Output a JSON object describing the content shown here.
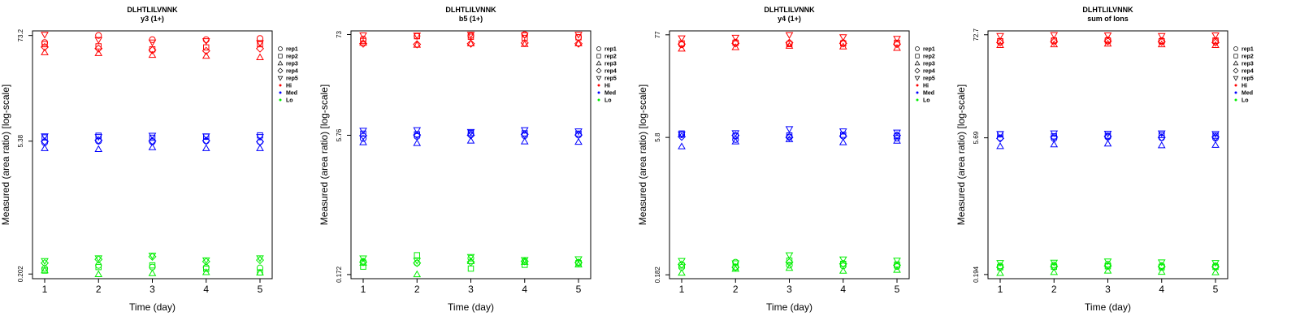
{
  "colors": {
    "Hi": "#ff0000",
    "Med": "#0000ff",
    "Lo": "#00ee00"
  },
  "chart_data": [
    {
      "type": "scatter",
      "title": "DLHTLILVNNK",
      "subtitle": "y3 (1+)",
      "xlabel": "Time (day)",
      "ylabel": "Measured (area ratio) [log-scale]",
      "yscale": "log",
      "x": [
        1,
        2,
        3,
        4,
        5
      ],
      "xticks": [
        "1",
        "2",
        "3",
        "4",
        "5"
      ],
      "yticks": [
        0.202,
        5.38,
        73.2
      ],
      "yticklabels": [
        "0.202",
        "5.38",
        "73.2"
      ],
      "ylim": [
        0.18,
        82
      ],
      "legend": [
        "rep1",
        "rep2",
        "rep3",
        "rep4",
        "rep5",
        "Hi",
        "Med",
        "Lo"
      ],
      "series": [
        {
          "name": "Hi",
          "values": [
            [
              61.5,
              73.2,
              66.0,
              66.0,
              68.0
            ],
            [
              59.0,
              56.0,
              52.0,
              54.5,
              59.0
            ],
            [
              48.0,
              47.0,
              45.0,
              44.0,
              42.5
            ],
            [
              55.0,
              53.0,
              51.0,
              50.0,
              53.0
            ],
            [
              75.0,
              66.0,
              62.0,
              64.0,
              61.0
            ]
          ]
        },
        {
          "name": "Med",
          "values": [
            [
              5.2,
              5.38,
              5.3,
              5.4,
              5.3
            ],
            [
              5.9,
              6.15,
              5.85,
              6.0,
              6.2
            ],
            [
              4.5,
              4.4,
              4.6,
              4.5,
              4.5
            ],
            [
              5.35,
              5.5,
              5.4,
              5.45,
              5.3
            ],
            [
              6.1,
              6.0,
              6.2,
              6.1,
              6.0
            ]
          ]
        },
        {
          "name": "Lo",
          "values": [
            [
              0.232,
              0.25,
              0.24,
              0.238,
              0.235
            ],
            [
              0.22,
              0.24,
              0.25,
              0.23,
              0.21
            ],
            [
              0.22,
              0.2,
              0.205,
              0.21,
              0.208
            ],
            [
              0.265,
              0.29,
              0.31,
              0.275,
              0.285
            ],
            [
              0.28,
              0.3,
              0.32,
              0.285,
              0.3
            ]
          ]
        }
      ]
    },
    {
      "type": "scatter",
      "title": "DLHTLILVNNK",
      "subtitle": "b5 (1+)",
      "xlabel": "Time (day)",
      "ylabel": "Measured (area ratio) [log-scale]",
      "yscale": "log",
      "x": [
        1,
        2,
        3,
        4,
        5
      ],
      "xticks": [
        "1",
        "2",
        "3",
        "4",
        "5"
      ],
      "yticks": [
        0.172,
        5.76,
        73
      ],
      "yticklabels": [
        "0.172",
        "5.76",
        "73"
      ],
      "ylim": [
        0.155,
        80
      ],
      "legend": [
        "rep1",
        "rep2",
        "rep3",
        "rep4",
        "rep5",
        "Hi",
        "Med",
        "Lo"
      ],
      "series": [
        {
          "name": "Hi",
          "values": [
            [
              65.0,
              70.0,
              71.0,
              73.0,
              68.0
            ],
            [
              62.0,
              70.0,
              69.0,
              67.0,
              68.0
            ],
            [
              59.0,
              56.0,
              58.0,
              57.0,
              58.0
            ],
            [
              58.0,
              57.0,
              58.0,
              59.0,
              58.0
            ],
            [
              72.0,
              71.5,
              73.0,
              72.0,
              73.0
            ]
          ]
        },
        {
          "name": "Med",
          "values": [
            [
              5.3,
              5.6,
              5.9,
              5.7,
              5.8
            ],
            [
              6.0,
              5.9,
              6.1,
              6.05,
              6.0
            ],
            [
              4.8,
              4.7,
              5.0,
              4.9,
              4.85
            ],
            [
              5.7,
              5.8,
              5.76,
              5.9,
              5.8
            ],
            [
              6.5,
              6.6,
              6.3,
              6.6,
              6.4
            ]
          ]
        },
        {
          "name": "Lo",
          "values": [
            [
              0.24,
              0.23,
              0.26,
              0.24,
              0.235
            ],
            [
              0.21,
              0.28,
              0.2,
              0.22,
              0.23
            ],
            [
              0.23,
              0.172,
              0.24,
              0.235,
              0.22
            ],
            [
              0.235,
              0.23,
              0.236,
              0.24,
              0.232
            ],
            [
              0.26,
              0.245,
              0.27,
              0.25,
              0.255
            ]
          ]
        }
      ]
    },
    {
      "type": "scatter",
      "title": "DLHTLILVNNK",
      "subtitle": "y4 (1+)",
      "xlabel": "Time (day)",
      "ylabel": "Measured (area ratio) [log-scale]",
      "yscale": "log",
      "x": [
        1,
        2,
        3,
        4,
        5
      ],
      "xticks": [
        "1",
        "2",
        "3",
        "4",
        "5"
      ],
      "yticks": [
        0.182,
        5.8,
        77
      ],
      "yticklabels": [
        "0.182",
        "5.8",
        "77"
      ],
      "ylim": [
        0.165,
        85
      ],
      "legend": [
        "rep1",
        "rep2",
        "rep3",
        "rep4",
        "rep5",
        "Hi",
        "Med",
        "Lo"
      ],
      "series": [
        {
          "name": "Hi",
          "values": [
            [
              60.0,
              64.0,
              62.0,
              63.0,
              61.0
            ],
            [
              62.0,
              63.0,
              61.0,
              62.0,
              63.0
            ],
            [
              54.0,
              56.0,
              58.0,
              57.0,
              55.0
            ],
            [
              61.0,
              62.0,
              63.0,
              62.0,
              61.0
            ],
            [
              71.0,
              72.0,
              77.0,
              73.0,
              70.0
            ]
          ]
        },
        {
          "name": "Med",
          "values": [
            [
              6.2,
              5.5,
              5.9,
              6.0,
              5.7
            ],
            [
              6.4,
              6.0,
              6.1,
              6.2,
              6.0
            ],
            [
              4.6,
              5.2,
              5.5,
              5.1,
              5.3
            ],
            [
              5.9,
              6.1,
              5.8,
              6.0,
              6.1
            ],
            [
              6.3,
              6.5,
              7.2,
              6.8,
              6.6
            ]
          ]
        },
        {
          "name": "Lo",
          "values": [
            [
              0.22,
              0.25,
              0.232,
              0.228,
              0.224
            ],
            [
              0.23,
              0.22,
              0.26,
              0.24,
              0.235
            ],
            [
              0.19,
              0.21,
              0.215,
              0.2,
              0.205
            ],
            [
              0.236,
              0.22,
              0.25,
              0.24,
              0.232
            ],
            [
              0.26,
              0.245,
              0.3,
              0.27,
              0.262
            ]
          ]
        }
      ]
    },
    {
      "type": "scatter",
      "title": "DLHTLILVNNK",
      "subtitle": "sum of Ions",
      "xlabel": "Time (day)",
      "ylabel": "Measured (area ratio) [log-scale]",
      "yscale": "log",
      "x": [
        1,
        2,
        3,
        4,
        5
      ],
      "xticks": [
        "1",
        "2",
        "3",
        "4",
        "5"
      ],
      "yticks": [
        0.194,
        5.69,
        72.7
      ],
      "yticklabels": [
        "0.194",
        "5.69",
        "72.7"
      ],
      "ylim": [
        0.175,
        80
      ],
      "legend": [
        "rep1",
        "rep2",
        "rep3",
        "rep4",
        "rep5",
        "Hi",
        "Med",
        "Lo"
      ],
      "series": [
        {
          "name": "Hi",
          "values": [
            [
              62.0,
              63.0,
              64.0,
              63.0,
              62.0
            ],
            [
              62.0,
              63.0,
              63.0,
              62.0,
              63.0
            ],
            [
              56.0,
              57.0,
              58.0,
              57.0,
              56.0
            ],
            [
              60.0,
              61.0,
              62.0,
              61.0,
              60.0
            ],
            [
              71.0,
              72.7,
              72.0,
              71.0,
              72.0
            ]
          ]
        },
        {
          "name": "Med",
          "values": [
            [
              5.7,
              5.6,
              5.8,
              5.7,
              5.65
            ],
            [
              6.2,
              5.9,
              6.0,
              6.1,
              6.0
            ],
            [
              4.6,
              4.8,
              4.9,
              4.7,
              4.75
            ],
            [
              5.6,
              5.8,
              5.9,
              5.75,
              5.8
            ],
            [
              6.3,
              6.4,
              6.35,
              6.4,
              6.3
            ]
          ]
        },
        {
          "name": "Lo",
          "values": [
            [
              0.24,
              0.245,
              0.25,
              0.242,
              0.24
            ],
            [
              0.232,
              0.235,
              0.238,
              0.232,
              0.234
            ],
            [
              0.2,
              0.205,
              0.212,
              0.206,
              0.204
            ],
            [
              0.232,
              0.236,
              0.24,
              0.235,
              0.234
            ],
            [
              0.26,
              0.262,
              0.27,
              0.264,
              0.26
            ]
          ]
        }
      ]
    }
  ]
}
